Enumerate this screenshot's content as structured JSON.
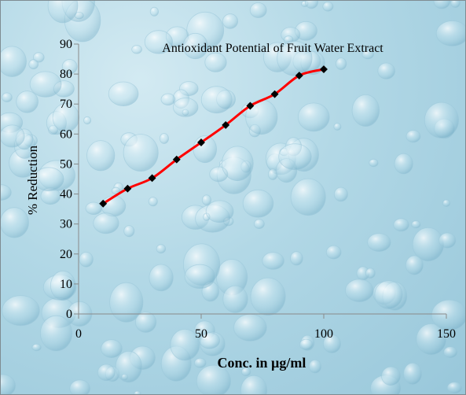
{
  "chart_data": {
    "type": "line",
    "title": "Antioxidant Potential of  Fruit Water Extract",
    "xlabel": "Conc. in µg/ml",
    "ylabel": "% Reduction",
    "xlim": [
      0,
      150
    ],
    "ylim": [
      0,
      90
    ],
    "xticks": [
      0,
      50,
      100,
      150
    ],
    "yticks": [
      0,
      10,
      20,
      30,
      40,
      50,
      60,
      70,
      80,
      90
    ],
    "grid": false,
    "legend": "none",
    "series": [
      {
        "color": "#ff0000",
        "marker_color": "#000000",
        "x": [
          10,
          20,
          30,
          40,
          50,
          60,
          70,
          80,
          90,
          100
        ],
        "y": [
          36.8,
          41.8,
          45.3,
          51.5,
          57.2,
          63,
          69.4,
          73.3,
          79.5,
          81.6
        ]
      }
    ]
  }
}
